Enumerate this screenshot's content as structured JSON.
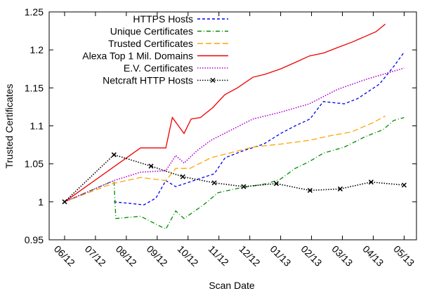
{
  "chart_data": {
    "type": "line",
    "x_label": "Scan Date",
    "y_label": "Trusted Certificates",
    "xlim": [
      -0.5,
      11.4
    ],
    "ylim": [
      0.95,
      1.25
    ],
    "xticks": [
      {
        "value": 0,
        "label": "06/12"
      },
      {
        "value": 1,
        "label": "07/12"
      },
      {
        "value": 2,
        "label": "08/12"
      },
      {
        "value": 3,
        "label": "09/12"
      },
      {
        "value": 4,
        "label": "10/12"
      },
      {
        "value": 5,
        "label": "11/12"
      },
      {
        "value": 6,
        "label": "12/12"
      },
      {
        "value": 7,
        "label": "01/13"
      },
      {
        "value": 8,
        "label": "02/13"
      },
      {
        "value": 9,
        "label": "03/13"
      },
      {
        "value": 10,
        "label": "04/13"
      },
      {
        "value": 11,
        "label": "05/13"
      }
    ],
    "yticks": [
      0.95,
      1,
      1.05,
      1.1,
      1.15,
      1.2,
      1.25
    ],
    "legend": "upper left",
    "series": [
      {
        "name": "HTTPS Hosts",
        "color": "#0000ee",
        "style": "dashed",
        "x": [
          1.6,
          2.57,
          2.96,
          3.28,
          3.6,
          4.85,
          5.2,
          5.77,
          6.45,
          7.0,
          7.47,
          7.95,
          8.38,
          9.06,
          9.5,
          10.2,
          10.66,
          11.0
        ],
        "values": [
          1.0,
          0.996,
          1.005,
          1.028,
          1.02,
          1.037,
          1.058,
          1.067,
          1.076,
          1.09,
          1.1,
          1.109,
          1.132,
          1.129,
          1.136,
          1.155,
          1.178,
          1.197
        ]
      },
      {
        "name": "Unique Certificates",
        "color": "#008b00",
        "style": "dashdot",
        "x": [
          0,
          1.6,
          1.66,
          2.46,
          3.28,
          3.6,
          3.87,
          4.5,
          4.97,
          5.65,
          6.56,
          7.0,
          7.47,
          7.93,
          8.38,
          9.06,
          9.75,
          10.32,
          10.66,
          11.0
        ],
        "values": [
          1.0,
          1.028,
          0.978,
          0.981,
          0.964,
          0.988,
          0.978,
          0.996,
          1.012,
          1.018,
          1.024,
          1.03,
          1.044,
          1.053,
          1.064,
          1.072,
          1.086,
          1.095,
          1.107,
          1.111
        ]
      },
      {
        "name": "Trusted Certificates",
        "color": "#ffa500",
        "style": "longdash",
        "x": [
          0,
          1.55,
          2.46,
          3.28,
          3.6,
          4.06,
          4.74,
          5.42,
          6.1,
          7.0,
          7.93,
          8.61,
          9.29,
          9.98,
          10.39
        ],
        "values": [
          1.0,
          1.024,
          1.032,
          1.028,
          1.044,
          1.044,
          1.058,
          1.065,
          1.072,
          1.076,
          1.081,
          1.087,
          1.092,
          1.104,
          1.113
        ]
      },
      {
        "name": "Alexa Top 1 Mil. Domains",
        "color": "#ee0000",
        "style": "solid",
        "x": [
          0,
          2.46,
          3.28,
          3.49,
          3.87,
          4.1,
          4.4,
          4.8,
          5.19,
          5.6,
          6.1,
          6.5,
          7.0,
          7.5,
          7.93,
          8.4,
          8.84,
          9.3,
          9.75,
          10.09,
          10.39
        ],
        "values": [
          1.0,
          1.071,
          1.071,
          1.111,
          1.09,
          1.109,
          1.111,
          1.124,
          1.141,
          1.15,
          1.164,
          1.168,
          1.175,
          1.184,
          1.192,
          1.196,
          1.203,
          1.21,
          1.218,
          1.224,
          1.234
        ]
      },
      {
        "name": "E.V. Certificates",
        "color": "#b000d0",
        "style": "dotted",
        "x": [
          0,
          1.6,
          2.46,
          3.28,
          3.6,
          3.87,
          4.28,
          4.74,
          5.42,
          6.1,
          7.0,
          7.93,
          8.84,
          9.75,
          10.66,
          11.0
        ],
        "values": [
          1.0,
          1.028,
          1.039,
          1.041,
          1.061,
          1.051,
          1.067,
          1.081,
          1.095,
          1.109,
          1.118,
          1.129,
          1.148,
          1.161,
          1.172,
          1.176
        ]
      },
      {
        "name": "Netcraft HTTP Hosts",
        "color": "#000000",
        "style": "dotted",
        "marker": "x",
        "x": [
          0,
          1.6,
          2.8,
          3.83,
          4.85,
          5.8,
          6.86,
          7.95,
          8.93,
          9.93,
          11.0
        ],
        "values": [
          1.0,
          1.062,
          1.047,
          1.033,
          1.025,
          1.02,
          1.024,
          1.015,
          1.017,
          1.026,
          1.022
        ]
      }
    ]
  }
}
